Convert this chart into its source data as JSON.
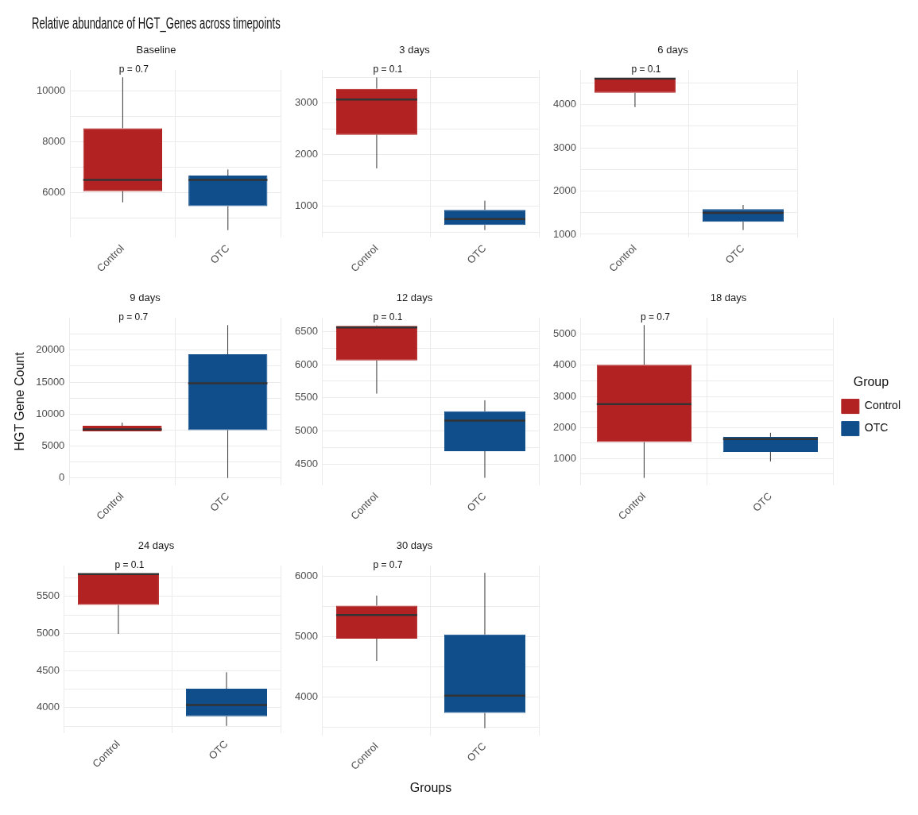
{
  "chart_data": [
    {
      "type": "box",
      "title": "Relative abundance of HGT_Genes across timepoints",
      "subtitle": "Baseline",
      "categories": [
        "Control",
        "OTC"
      ],
      "grid": true,
      "ylim": [
        4230,
        10830
      ],
      "yticks": [
        {
          "value": 5000,
          "label": null
        },
        6000,
        {
          "value": 7000,
          "label": null
        },
        8000,
        {
          "value": 9000,
          "label": null
        },
        10000
      ],
      "annotations": [
        "p = 0.7"
      ],
      "series": [
        {
          "color": "#b22222",
          "boxes": [
            {
              "low": 5620,
              "q1": 6060,
              "median": 6500,
              "q3": 8530,
              "high": 10530
            },
            null
          ]
        },
        {
          "color": "#104e8b",
          "boxes": [
            null,
            {
              "low": 4530,
              "q1": 5470,
              "median": 6500,
              "q3": 6670,
              "high": 6910
            }
          ]
        }
      ]
    },
    {
      "type": "box",
      "subtitle": "3 days",
      "categories": [
        "Control",
        "OTC"
      ],
      "grid": true,
      "ylim": [
        390,
        3650
      ],
      "yticks": [
        {
          "value": 500,
          "label": null
        },
        1000,
        {
          "value": 1500,
          "label": null
        },
        2000,
        {
          "value": 2500,
          "label": null
        },
        3000,
        {
          "value": 3500,
          "label": null
        }
      ],
      "annotations": [
        "p = 0.1"
      ],
      "series": [
        {
          "color": "#b22222",
          "boxes": [
            {
              "low": 1735,
              "q1": 2387,
              "median": 3070,
              "q3": 3280,
              "high": 3497
            },
            null
          ]
        },
        {
          "color": "#104e8b",
          "boxes": [
            null,
            {
              "low": 540,
              "q1": 637,
              "median": 753,
              "q3": 932,
              "high": 1110
            }
          ]
        }
      ]
    },
    {
      "type": "box",
      "subtitle": "6 days",
      "categories": [
        "Control",
        "OTC"
      ],
      "grid": true,
      "ylim": [
        920,
        4810
      ],
      "yticks": [
        1000,
        {
          "value": 1500,
          "label": null
        },
        2000,
        {
          "value": 2500,
          "label": null
        },
        3000,
        {
          "value": 3500,
          "label": null
        },
        4000,
        {
          "value": 4500,
          "label": null
        }
      ],
      "annotations": [
        "p = 0.1"
      ],
      "series": [
        {
          "color": "#b22222",
          "boxes": [
            {
              "low": 3942,
              "q1": 4274,
              "median": 4600,
              "q3": 4620,
              "high": 4620
            },
            null
          ]
        },
        {
          "color": "#104e8b",
          "boxes": [
            null,
            {
              "low": 1098,
              "q1": 1290,
              "median": 1494,
              "q3": 1581,
              "high": 1679
            }
          ]
        }
      ]
    },
    {
      "type": "box",
      "subtitle": "9 days",
      "ylabel": "HGT Gene Count",
      "categories": [
        "Control",
        "OTC"
      ],
      "grid": true,
      "ylim": [
        -1200,
        25120
      ],
      "yticks": [
        0,
        {
          "value": 2500,
          "label": null
        },
        5000,
        {
          "value": 7500,
          "label": null
        },
        10000,
        {
          "value": 12500,
          "label": null
        },
        15000,
        {
          "value": 17500,
          "label": null
        },
        20000,
        {
          "value": 22500,
          "label": null
        }
      ],
      "annotations": [
        "p = 0.7"
      ],
      "series": [
        {
          "color": "#b22222",
          "boxes": [
            {
              "low": 7300,
              "q1": 7310,
              "median": 7600,
              "q3": 8150,
              "high": 8650
            },
            null
          ]
        },
        {
          "color": "#104e8b",
          "boxes": [
            null,
            {
              "low": 0,
              "q1": 7490,
              "median": 14800,
              "q3": 19340,
              "high": 23920
            }
          ]
        }
      ]
    },
    {
      "type": "box",
      "subtitle": "12 days",
      "categories": [
        "Control",
        "OTC"
      ],
      "grid": true,
      "ylim": [
        4180,
        6710
      ],
      "yticks": [
        4500,
        {
          "value": 4750,
          "label": null
        },
        5000,
        {
          "value": 5250,
          "label": null
        },
        5500,
        {
          "value": 5750,
          "label": null
        },
        6000,
        {
          "value": 6250,
          "label": null
        },
        6500
      ],
      "annotations": [
        "p = 0.1"
      ],
      "series": [
        {
          "color": "#b22222",
          "boxes": [
            {
              "low": 5564,
              "q1": 6063,
              "median": 6560,
              "q3": 6583,
              "high": 6590
            },
            null
          ]
        },
        {
          "color": "#104e8b",
          "boxes": [
            null,
            {
              "low": 4297,
              "q1": 4699,
              "median": 5157,
              "q3": 5298,
              "high": 5464
            }
          ]
        }
      ]
    },
    {
      "type": "box",
      "subtitle": "18 days",
      "categories": [
        "Control",
        "OTC"
      ],
      "grid": true,
      "legend": "right",
      "legend_title": "Group",
      "ylim": [
        130,
        5540
      ],
      "yticks": [
        {
          "value": 500,
          "label": null
        },
        1000,
        {
          "value": 1500,
          "label": null
        },
        2000,
        {
          "value": 2500,
          "label": null
        },
        3000,
        {
          "value": 3500,
          "label": null
        },
        4000,
        {
          "value": 4500,
          "label": null
        },
        5000
      ],
      "annotations": [
        "p = 0.7"
      ],
      "series": [
        {
          "name": "Control",
          "color": "#b22222",
          "boxes": [
            {
              "low": 378,
              "q1": 1530,
              "median": 2750,
              "q3": 4017,
              "high": 5294
            },
            null
          ]
        },
        {
          "name": "OTC",
          "color": "#104e8b",
          "boxes": [
            null,
            {
              "low": 908,
              "q1": 1210,
              "median": 1625,
              "q3": 1700,
              "high": 1830
            }
          ]
        }
      ]
    },
    {
      "type": "box",
      "subtitle": "24 days",
      "categories": [
        "Control",
        "OTC"
      ],
      "grid": true,
      "ylim": [
        3650,
        5920
      ],
      "yticks": [
        {
          "value": 3750,
          "label": null
        },
        4000,
        {
          "value": 4250,
          "label": null
        },
        4500,
        {
          "value": 4750,
          "label": null
        },
        5000,
        {
          "value": 5250,
          "label": null
        },
        5500,
        {
          "value": 5750,
          "label": null
        }
      ],
      "annotations": [
        "p = 0.1"
      ],
      "series": [
        {
          "color": "#b22222",
          "boxes": [
            {
              "low": 4993,
              "q1": 5385,
              "median": 5800,
              "q3": 5812,
              "high": 5815
            },
            null
          ]
        },
        {
          "color": "#104e8b",
          "boxes": [
            null,
            {
              "low": 3752,
              "q1": 3881,
              "median": 4034,
              "q3": 4254,
              "high": 4476
            }
          ]
        }
      ]
    },
    {
      "type": "box",
      "subtitle": "30 days",
      "xlabel": "Groups",
      "categories": [
        "Control",
        "OTC"
      ],
      "grid": true,
      "ylim": [
        3360,
        6180
      ],
      "yticks": [
        {
          "value": 3500,
          "label": null
        },
        4000,
        {
          "value": 4500,
          "label": null
        },
        5000,
        {
          "value": 5500,
          "label": null
        },
        6000
      ],
      "annotations": [
        "p = 0.7"
      ],
      "series": [
        {
          "color": "#b22222",
          "boxes": [
            {
              "low": 4596,
              "q1": 4967,
              "median": 5357,
              "q3": 5512,
              "high": 5678
            },
            null
          ]
        },
        {
          "color": "#104e8b",
          "boxes": [
            null,
            {
              "low": 3485,
              "q1": 3736,
              "median": 4021,
              "q3": 5034,
              "high": 6055
            }
          ]
        }
      ]
    }
  ]
}
